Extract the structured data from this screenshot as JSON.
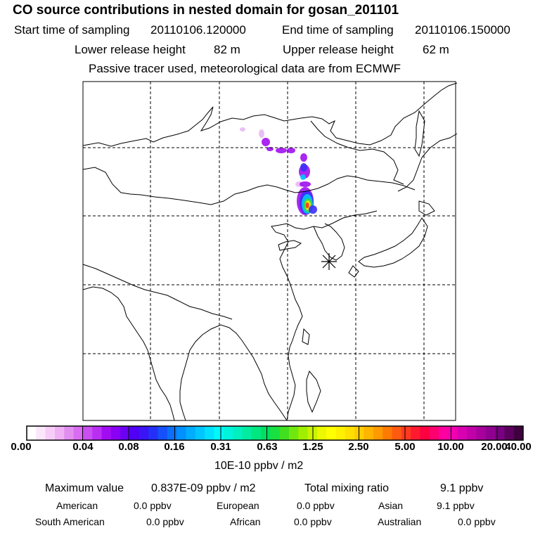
{
  "header": {
    "title": "CO  source contributions in nested domain for gosan_201101",
    "start_label": "Start time of sampling",
    "start_value": "20110106.120000",
    "end_label": "End time of sampling",
    "end_value": "20110106.150000",
    "lower_label": "Lower release height",
    "lower_value": "82 m",
    "upper_label": "Upper release height",
    "upper_value": "62 m",
    "tracer_note": "Passive tracer used, meteorological data are from ECMWF"
  },
  "colorbar": {
    "labels": [
      "0.00",
      "0.04",
      "0.08",
      "0.16",
      "0.31",
      "0.63",
      "1.25",
      "2.50",
      "5.00",
      "10.00",
      "20.00",
      "40.00"
    ],
    "colors": [
      "#ffffff",
      "#fbe6fb",
      "#f6cdf7",
      "#f0b0f4",
      "#e28ef0",
      "#d96cf0",
      "#c94ff0",
      "#b82ff2",
      "#a10cf4",
      "#8a00f4",
      "#6a00f4",
      "#5000f4",
      "#3a14f6",
      "#2430f8",
      "#1650fa",
      "#0a70fc",
      "#0090ff",
      "#00acff",
      "#00c6ff",
      "#00e0ff",
      "#00f8f8",
      "#00f4dc",
      "#00f0c0",
      "#00eca0",
      "#00e680",
      "#00e060",
      "#18e040",
      "#40e020",
      "#70e810",
      "#a0ef00",
      "#c8f400",
      "#ecf800",
      "#ffff00",
      "#fff000",
      "#ffe000",
      "#ffcc00",
      "#ffb400",
      "#ff9a00",
      "#ff7a00",
      "#ff5a10",
      "#ff3a20",
      "#ff1a30",
      "#ff0040",
      "#ff0070",
      "#ff00a0",
      "#f000b0",
      "#d800b0",
      "#c000a8",
      "#a8009c",
      "#900090",
      "#780080",
      "#5c0060",
      "#400040"
    ],
    "units": "10E-10 ppbv / m2"
  },
  "summary": {
    "max_label": "Maximum value",
    "max_value": "0.837E-09 ppbv / m2",
    "total_label": "Total mixing ratio",
    "total_value": "9.1 ppbv"
  },
  "regions": [
    {
      "name": "American",
      "value": "0.0 ppbv"
    },
    {
      "name": "European",
      "value": "0.0 ppbv"
    },
    {
      "name": "Asian",
      "value": "9.1 ppbv"
    },
    {
      "name": "South American",
      "value": "0.0 ppbv"
    },
    {
      "name": "African",
      "value": "0.0 ppbv"
    },
    {
      "name": "Australian",
      "value": "0.0 ppbv"
    }
  ],
  "plume_colors": {
    "low": "#e8b8f4",
    "mid": "#a010f0",
    "blue": "#3a30f8",
    "cyan": "#00c8ff",
    "green": "#30e040",
    "yellow": "#ffe000",
    "peak": "#ff3020"
  }
}
